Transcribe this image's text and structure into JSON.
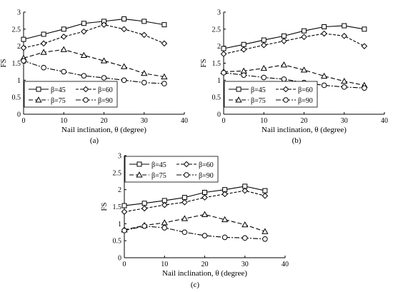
{
  "figure": {
    "panels": [
      "(a)",
      "(b)",
      "(c)"
    ]
  },
  "chart_data": [
    {
      "type": "line",
      "panel_label": "(a)",
      "xlabel": "Nail inclination, θ (degree)",
      "ylabel": "FS",
      "xlim": [
        0,
        40
      ],
      "ylim": [
        0,
        3
      ],
      "xticks": [
        0,
        10,
        20,
        30,
        40
      ],
      "yticks": [
        0,
        0.5,
        1,
        1.5,
        2,
        2.5,
        3
      ],
      "legend_position": "bottom-left",
      "x": [
        0,
        5,
        10,
        15,
        20,
        25,
        30,
        35
      ],
      "series": [
        {
          "name": "β=45",
          "marker": "square",
          "line": "solid",
          "values": [
            2.2,
            2.35,
            2.5,
            2.67,
            2.73,
            2.8,
            2.73,
            2.63
          ]
        },
        {
          "name": "β=60",
          "marker": "diamond",
          "line": "dashed",
          "values": [
            1.95,
            2.08,
            2.28,
            2.43,
            2.63,
            2.5,
            2.33,
            2.08
          ]
        },
        {
          "name": "β=75",
          "marker": "triangle",
          "line": "dash-long",
          "values": [
            1.65,
            1.82,
            1.9,
            1.73,
            1.57,
            1.4,
            1.2,
            1.1
          ]
        },
        {
          "name": "β=90",
          "marker": "circle",
          "line": "dash-dot",
          "values": [
            1.57,
            1.37,
            1.25,
            1.13,
            1.07,
            1.0,
            0.93,
            0.9
          ]
        }
      ]
    },
    {
      "type": "line",
      "panel_label": "(b)",
      "xlabel": "Nail inclination, θ (degree)",
      "ylabel": "FS",
      "xlim": [
        0,
        40
      ],
      "ylim": [
        0,
        3
      ],
      "xticks": [
        0,
        10,
        20,
        30,
        40
      ],
      "yticks": [
        0,
        0.5,
        1,
        1.5,
        2,
        2.5,
        3
      ],
      "legend_position": "bottom-left",
      "x": [
        0,
        5,
        10,
        15,
        20,
        25,
        30,
        35
      ],
      "series": [
        {
          "name": "β=45",
          "marker": "square",
          "line": "solid",
          "values": [
            1.93,
            2.05,
            2.18,
            2.3,
            2.45,
            2.57,
            2.6,
            2.5
          ]
        },
        {
          "name": "β=60",
          "marker": "diamond",
          "line": "dashed",
          "values": [
            1.77,
            1.9,
            2.03,
            2.15,
            2.27,
            2.37,
            2.3,
            2.0
          ]
        },
        {
          "name": "β=75",
          "marker": "triangle",
          "line": "dash-long",
          "values": [
            1.25,
            1.27,
            1.35,
            1.45,
            1.3,
            1.12,
            0.97,
            0.85
          ]
        },
        {
          "name": "β=90",
          "marker": "circle",
          "line": "dash-dot",
          "values": [
            1.22,
            1.15,
            1.08,
            1.03,
            0.93,
            0.85,
            0.8,
            0.77
          ]
        }
      ]
    },
    {
      "type": "line",
      "panel_label": "(c)",
      "xlabel": "Nail inclination, θ (degree)",
      "ylabel": "FS",
      "xlim": [
        0,
        40
      ],
      "ylim": [
        0,
        3
      ],
      "xticks": [
        0,
        10,
        20,
        30,
        40
      ],
      "yticks": [
        0,
        0.5,
        1,
        1.5,
        2,
        2.5,
        3
      ],
      "legend_position": "top-left",
      "x": [
        0,
        5,
        10,
        15,
        20,
        25,
        30,
        35
      ],
      "series": [
        {
          "name": "β=45",
          "marker": "square",
          "line": "solid",
          "values": [
            1.53,
            1.6,
            1.68,
            1.77,
            1.92,
            2.0,
            2.1,
            1.97
          ]
        },
        {
          "name": "β=60",
          "marker": "diamond",
          "line": "dashed",
          "values": [
            1.35,
            1.45,
            1.55,
            1.63,
            1.77,
            1.87,
            1.97,
            1.82
          ]
        },
        {
          "name": "β=75",
          "marker": "triangle",
          "line": "dash-long",
          "values": [
            0.82,
            0.95,
            1.03,
            1.15,
            1.27,
            1.12,
            0.97,
            0.77
          ]
        },
        {
          "name": "β=90",
          "marker": "circle",
          "line": "dash-dot",
          "values": [
            0.8,
            0.93,
            0.88,
            0.75,
            0.65,
            0.6,
            0.58,
            0.55
          ]
        }
      ]
    }
  ]
}
